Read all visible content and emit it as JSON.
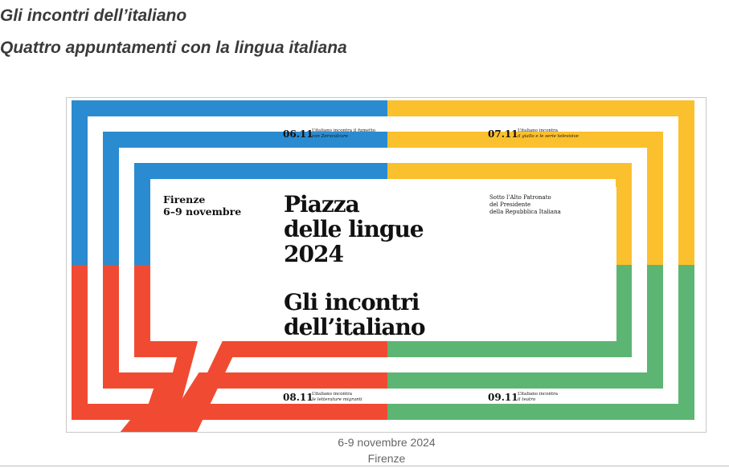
{
  "page": {
    "title": "Gli incontri dell’italiano",
    "subtitle": "Quattro appuntamenti con la lingua italiana"
  },
  "poster": {
    "city": "Firenze",
    "dates": "6–9 novembre",
    "title_lines": [
      "Piazza",
      "delle lingue",
      "2024"
    ],
    "subtitle_lines": [
      "Gli incontri",
      "dell’italiano"
    ],
    "patronage_lines": [
      "Sotto l’Alto Patronato",
      "del Presidente",
      "della Repubblica Italiana"
    ],
    "events": [
      {
        "date": "06.11",
        "line1": "L’italiano incontra il fumetto",
        "line2": "con Zerocalcare"
      },
      {
        "date": "07.11",
        "line1": "L’italiano incontra",
        "line2": "il giallo e le serie televisive"
      },
      {
        "date": "08.11",
        "line1": "L’italiano incontra",
        "line2": "le letterature migranti"
      },
      {
        "date": "09.11",
        "line1": "L’italiano incontra",
        "line2": "il teatro"
      }
    ],
    "colors": {
      "blue": "#2a8bd0",
      "yellow": "#fbc02d",
      "red": "#f04b32",
      "green": "#5db573"
    }
  },
  "caption": {
    "line1": "6-9 novembre 2024",
    "line2": "Firenze"
  }
}
